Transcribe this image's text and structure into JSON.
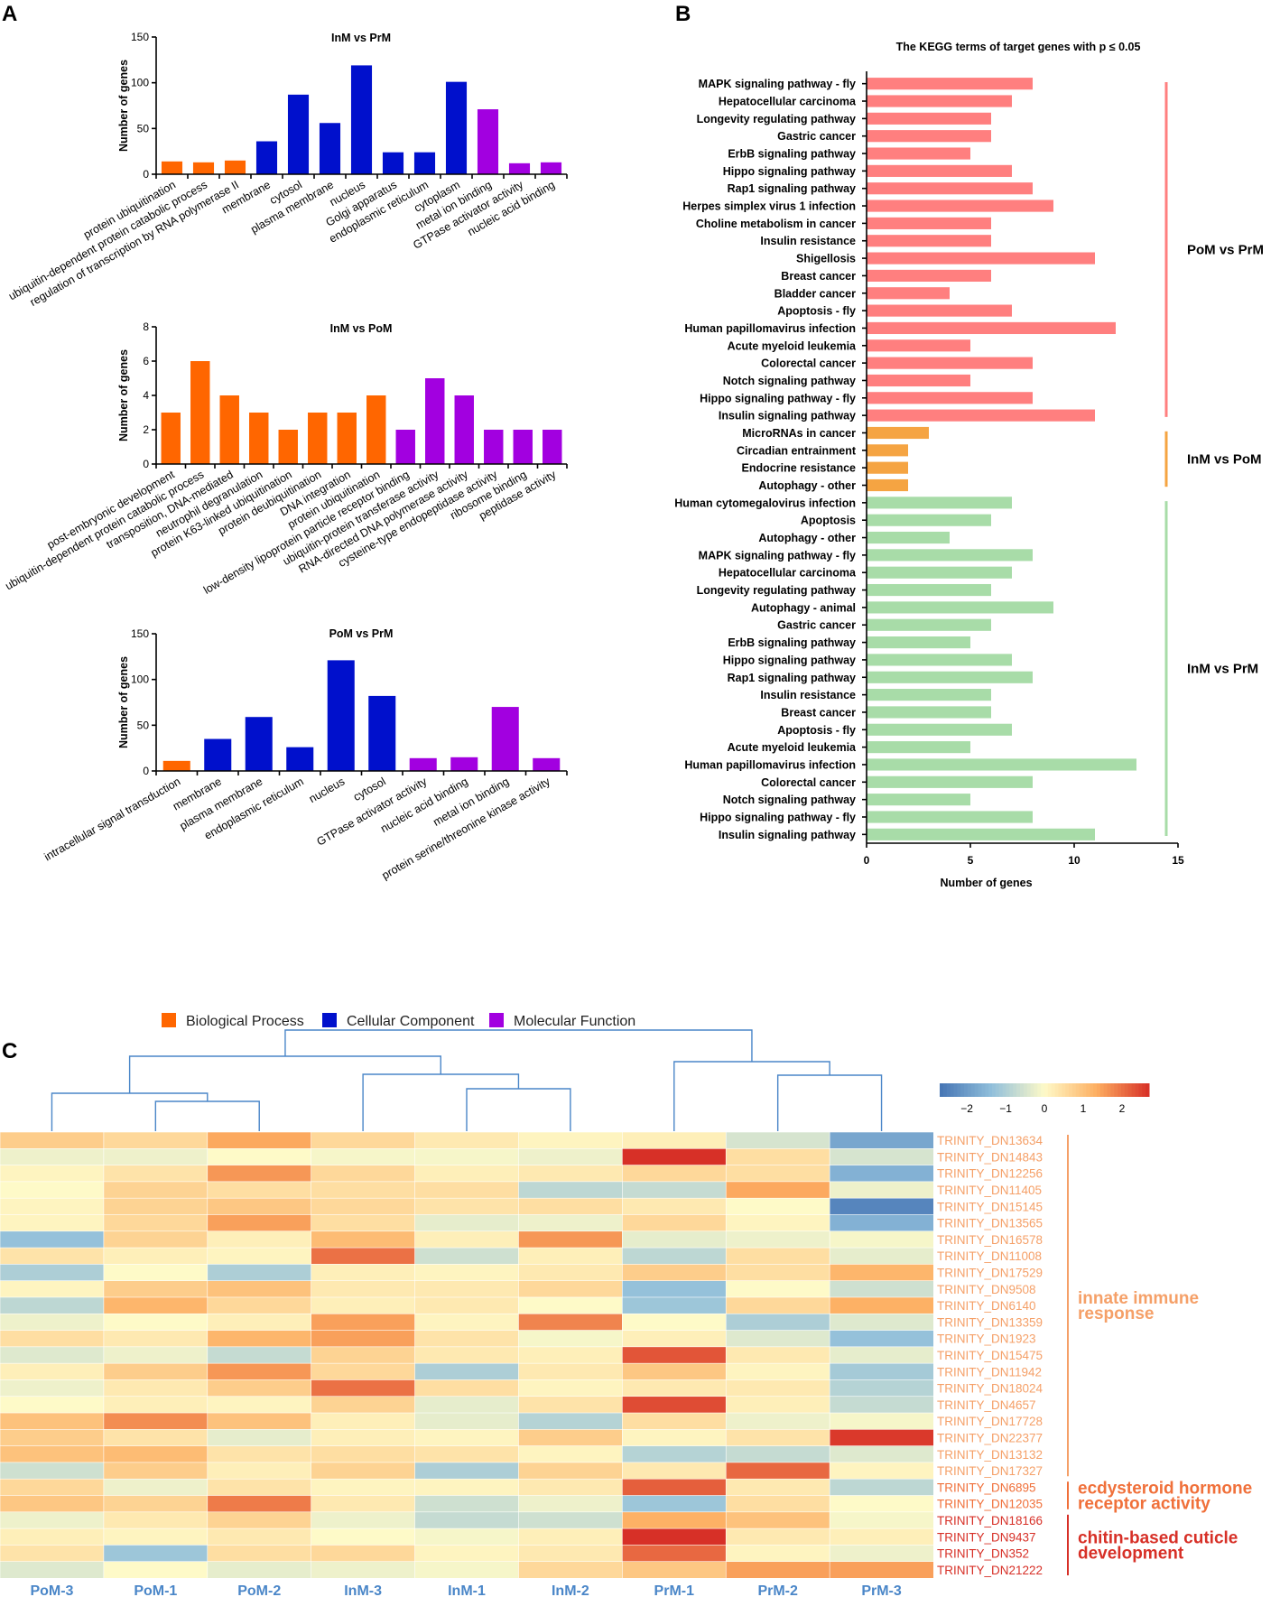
{
  "panels": {
    "A": "A",
    "B": "B",
    "C": "C"
  },
  "colors": {
    "bp": "#ff6600",
    "cc": "#0010cc",
    "mf": "#a200e0",
    "pom_prm": "#ff7f7f",
    "inm_pom": "#f5a442",
    "inm_prm": "#a8dca8",
    "heat_low": "#4a79c0",
    "heat_mid": "#fdf9c8",
    "heat_high": "#d7312c",
    "tree": "#4a86c8",
    "col_label": "#4a86c8",
    "innate": "#f5a068",
    "ecdy": "#f0703a",
    "chitin": "#d73027"
  },
  "go_legend": [
    {
      "label": "Biological Process",
      "color_key": "bp"
    },
    {
      "label": "Cellular Component",
      "color_key": "cc"
    },
    {
      "label": "Molecular Function",
      "color_key": "mf"
    }
  ],
  "chart_data": [
    {
      "type": "bar",
      "title": "InM vs PrM",
      "ylabel": "Number of genes",
      "ylim": [
        0,
        150
      ],
      "yticks": [
        0,
        50,
        100,
        150
      ],
      "categories": [
        "protein ubiquitination",
        "ubiquitin-dependent protein catabolic process",
        "regulation of transcription by RNA polymerase II",
        "membrane",
        "cytosol",
        "plasma membrane",
        "nucleus",
        "Golgi apparatus",
        "endoplasmic reticulum",
        "cytoplasm",
        "metal ion binding",
        "GTPase activator activity",
        "nucleic acid binding"
      ],
      "values": [
        14,
        13,
        15,
        36,
        87,
        56,
        119,
        24,
        24,
        101,
        71,
        12,
        13
      ],
      "groups": [
        "bp",
        "bp",
        "bp",
        "cc",
        "cc",
        "cc",
        "cc",
        "cc",
        "cc",
        "cc",
        "mf",
        "mf",
        "mf"
      ]
    },
    {
      "type": "bar",
      "title": "InM vs PoM",
      "ylabel": "Number of genes",
      "ylim": [
        0,
        8
      ],
      "yticks": [
        0,
        2,
        4,
        6,
        8
      ],
      "categories": [
        "post-embryonic development",
        "ubiquitin-dependent protein catabolic process",
        "transposition, DNA-mediated",
        "neutrophil degranulation",
        "protein K63-linked ubiquitination",
        "protein deubiquitination",
        "DNA integration",
        "protein ubiquitination",
        "low-density lipoprotein particle receptor binding",
        "ubiquitin-protein transferase activity",
        "RNA-directed DNA polymerase activity",
        "cysteine-type endopeptidase activity",
        "ribosome binding",
        "peptidase activity"
      ],
      "values": [
        3,
        6,
        4,
        3,
        2,
        3,
        3,
        4,
        2,
        5,
        4,
        2,
        2,
        2
      ],
      "groups": [
        "bp",
        "bp",
        "bp",
        "bp",
        "bp",
        "bp",
        "bp",
        "bp",
        "mf",
        "mf",
        "mf",
        "mf",
        "mf",
        "mf"
      ]
    },
    {
      "type": "bar",
      "title": "PoM vs PrM",
      "ylabel": "Number of genes",
      "ylim": [
        0,
        150
      ],
      "yticks": [
        0,
        50,
        100,
        150
      ],
      "categories": [
        "intracellular signal transduction",
        "membrane",
        "plasma membrane",
        "endoplasmic reticulum",
        "nucleus",
        "cytosol",
        "GTPase activator activity",
        "nucleic acid binding",
        "metal ion binding",
        "protein serine/threonine kinase activity"
      ],
      "values": [
        11,
        35,
        59,
        26,
        121,
        82,
        14,
        15,
        70,
        14
      ],
      "groups": [
        "bp",
        "cc",
        "cc",
        "cc",
        "cc",
        "cc",
        "mf",
        "mf",
        "mf",
        "mf"
      ]
    },
    {
      "type": "bar",
      "orientation": "horizontal",
      "title": "The KEGG terms of target genes with p ≤ 0.05",
      "xlabel": "Number of genes",
      "xlim": [
        0,
        15
      ],
      "xticks": [
        0,
        5,
        10,
        15
      ],
      "groups": [
        {
          "name": "PoM vs PrM",
          "color_key": "pom_prm",
          "categories": [
            "MAPK signaling pathway - fly",
            "Hepatocellular carcinoma",
            "Longevity regulating pathway",
            "Gastric cancer",
            "ErbB signaling pathway",
            "Hippo signaling pathway",
            "Rap1 signaling pathway",
            "Herpes simplex virus 1 infection",
            "Choline metabolism in cancer",
            "Insulin resistance",
            "Shigellosis",
            "Breast cancer",
            "Bladder cancer",
            "Apoptosis - fly",
            "Human papillomavirus infection",
            "Acute myeloid leukemia",
            "Colorectal cancer",
            "Notch signaling pathway",
            "Hippo signaling pathway - fly",
            "Insulin signaling pathway"
          ],
          "values": [
            8,
            7,
            6,
            6,
            5,
            7,
            8,
            9,
            6,
            6,
            11,
            6,
            4,
            7,
            12,
            5,
            8,
            5,
            8,
            11
          ]
        },
        {
          "name": "InM vs PoM",
          "color_key": "inm_pom",
          "categories": [
            "MicroRNAs in cancer",
            "Circadian entrainment",
            "Endocrine resistance",
            "Autophagy - other"
          ],
          "values": [
            3,
            2,
            2,
            2
          ]
        },
        {
          "name": "InM vs PrM",
          "color_key": "inm_prm",
          "categories": [
            "Human cytomegalovirus infection",
            "Apoptosis",
            "Autophagy - other",
            "MAPK signaling pathway - fly",
            "Hepatocellular carcinoma",
            "Longevity regulating pathway",
            "Autophagy - animal",
            "Gastric cancer",
            "ErbB signaling pathway",
            "Hippo signaling pathway",
            "Rap1 signaling pathway",
            "Insulin resistance",
            "Breast cancer",
            "Apoptosis - fly",
            "Acute myeloid leukemia",
            "Human papillomavirus infection",
            "Colorectal cancer",
            "Notch signaling pathway",
            "Hippo signaling pathway - fly",
            "Insulin signaling pathway"
          ],
          "values": [
            7,
            6,
            4,
            8,
            7,
            6,
            9,
            6,
            5,
            7,
            8,
            6,
            6,
            7,
            5,
            13,
            8,
            5,
            8,
            11
          ]
        }
      ]
    },
    {
      "type": "heatmap",
      "colorbar": {
        "ticks": [
          -2,
          -1,
          0,
          1,
          2
        ],
        "tick_labels": [
          "−2",
          "−1",
          "0",
          "1",
          "2"
        ],
        "range": [
          -2.7,
          2.7
        ]
      },
      "columns": [
        "PoM-3",
        "PoM-1",
        "PoM-2",
        "InM-3",
        "InM-1",
        "InM-2",
        "PrM-1",
        "PrM-2",
        "PrM-3"
      ],
      "rows": [
        "TRINITY_DN13634",
        "TRINITY_DN14843",
        "TRINITY_DN12256",
        "TRINITY_DN11405",
        "TRINITY_DN15145",
        "TRINITY_DN13565",
        "TRINITY_DN16578",
        "TRINITY_DN11008",
        "TRINITY_DN17529",
        "TRINITY_DN9508",
        "TRINITY_DN6140",
        "TRINITY_DN13359",
        "TRINITY_DN1923",
        "TRINITY_DN15475",
        "TRINITY_DN11942",
        "TRINITY_DN18024",
        "TRINITY_DN4657",
        "TRINITY_DN17728",
        "TRINITY_DN22377",
        "TRINITY_DN13132",
        "TRINITY_DN17327",
        "TRINITY_DN6895",
        "TRINITY_DN12035",
        "TRINITY_DN18166",
        "TRINITY_DN9437",
        "TRINITY_DN352",
        "TRINITY_DN21222"
      ],
      "row_groups": [
        {
          "label_lines": [
            "innate immune",
            "response"
          ],
          "start": 0,
          "end": 20,
          "color_key": "innate"
        },
        {
          "label_lines": [
            "ecdysteroid hormone",
            "receptor activity"
          ],
          "start": 21,
          "end": 22,
          "color_key": "ecdy"
        },
        {
          "label_lines": [
            "chitin-based cuticle",
            "development"
          ],
          "start": 23,
          "end": 26,
          "color_key": "chitin"
        }
      ],
      "values": [
        [
          0.8,
          0.6,
          1.4,
          0.6,
          0.3,
          0.1,
          0.2,
          -0.5,
          -1.8
        ],
        [
          -0.2,
          -0.2,
          0.0,
          -0.1,
          -0.1,
          -0.2,
          2.7,
          0.5,
          -0.5
        ],
        [
          0.1,
          0.4,
          1.6,
          0.6,
          0.2,
          0.3,
          0.6,
          0.5,
          -1.6
        ],
        [
          0.0,
          0.7,
          0.5,
          0.5,
          0.5,
          -0.8,
          -0.7,
          1.4,
          -0.2
        ],
        [
          0.1,
          0.7,
          0.9,
          0.6,
          0.4,
          0.5,
          0.3,
          0.0,
          -2.4
        ],
        [
          0.1,
          0.6,
          1.5,
          0.5,
          -0.3,
          -0.2,
          0.6,
          0.1,
          -1.6
        ],
        [
          -1.3,
          0.7,
          0.2,
          1.1,
          0.2,
          1.6,
          -0.3,
          -0.2,
          -0.1
        ],
        [
          0.4,
          0.2,
          0.1,
          2.0,
          -0.6,
          0.2,
          -0.8,
          0.5,
          -0.3
        ],
        [
          -1.0,
          0.0,
          -1.0,
          0.2,
          0.1,
          0.3,
          0.8,
          0.5,
          1.2
        ],
        [
          0.1,
          0.8,
          1.0,
          0.3,
          0.3,
          0.6,
          -1.3,
          0.0,
          -0.6
        ],
        [
          -0.8,
          1.2,
          0.6,
          0.2,
          0.3,
          0.0,
          -1.2,
          0.6,
          1.3
        ],
        [
          -0.2,
          0.0,
          0.2,
          1.5,
          0.1,
          1.8,
          0.0,
          -1.0,
          -0.4
        ],
        [
          0.5,
          0.3,
          1.2,
          1.5,
          0.4,
          -0.1,
          0.2,
          -0.4,
          -1.3
        ],
        [
          -0.4,
          -0.2,
          -0.7,
          0.7,
          0.3,
          0.2,
          2.3,
          0.3,
          -0.3
        ],
        [
          0.2,
          0.8,
          1.6,
          0.6,
          -1.0,
          0.3,
          0.9,
          0.1,
          -1.1
        ],
        [
          -0.2,
          0.3,
          0.8,
          2.0,
          0.5,
          0.1,
          0.3,
          0.3,
          -0.9
        ],
        [
          0.0,
          0.2,
          0.1,
          0.7,
          -0.3,
          0.4,
          2.4,
          0.2,
          -0.7
        ],
        [
          1.0,
          1.7,
          1.0,
          0.2,
          -0.3,
          -0.9,
          0.5,
          -0.2,
          -0.1
        ],
        [
          0.8,
          0.4,
          -0.3,
          0.2,
          0.1,
          0.8,
          0.1,
          0.4,
          2.6
        ],
        [
          1.0,
          1.1,
          0.4,
          0.5,
          0.4,
          0.1,
          -0.9,
          -0.7,
          -0.4
        ],
        [
          -0.6,
          0.8,
          0.2,
          0.7,
          -1.0,
          0.7,
          0.3,
          2.1,
          0.1
        ],
        [
          0.6,
          -0.2,
          0.4,
          0.1,
          0.1,
          0.3,
          2.2,
          0.3,
          -0.8
        ],
        [
          0.9,
          0.7,
          1.9,
          0.3,
          -0.6,
          -0.2,
          -1.2,
          0.5,
          0.0
        ],
        [
          -0.2,
          0.3,
          0.7,
          -0.2,
          -0.7,
          -0.6,
          1.3,
          1.0,
          -0.1
        ],
        [
          0.2,
          0.1,
          0.3,
          0.0,
          -0.1,
          0.2,
          2.7,
          0.3,
          0.2
        ],
        [
          0.4,
          -1.2,
          0.5,
          0.6,
          0.1,
          0.3,
          2.1,
          0.1,
          -0.2
        ],
        [
          -0.4,
          0.0,
          -0.3,
          -0.2,
          -0.1,
          0.6,
          0.9,
          1.5,
          1.5
        ]
      ]
    }
  ]
}
